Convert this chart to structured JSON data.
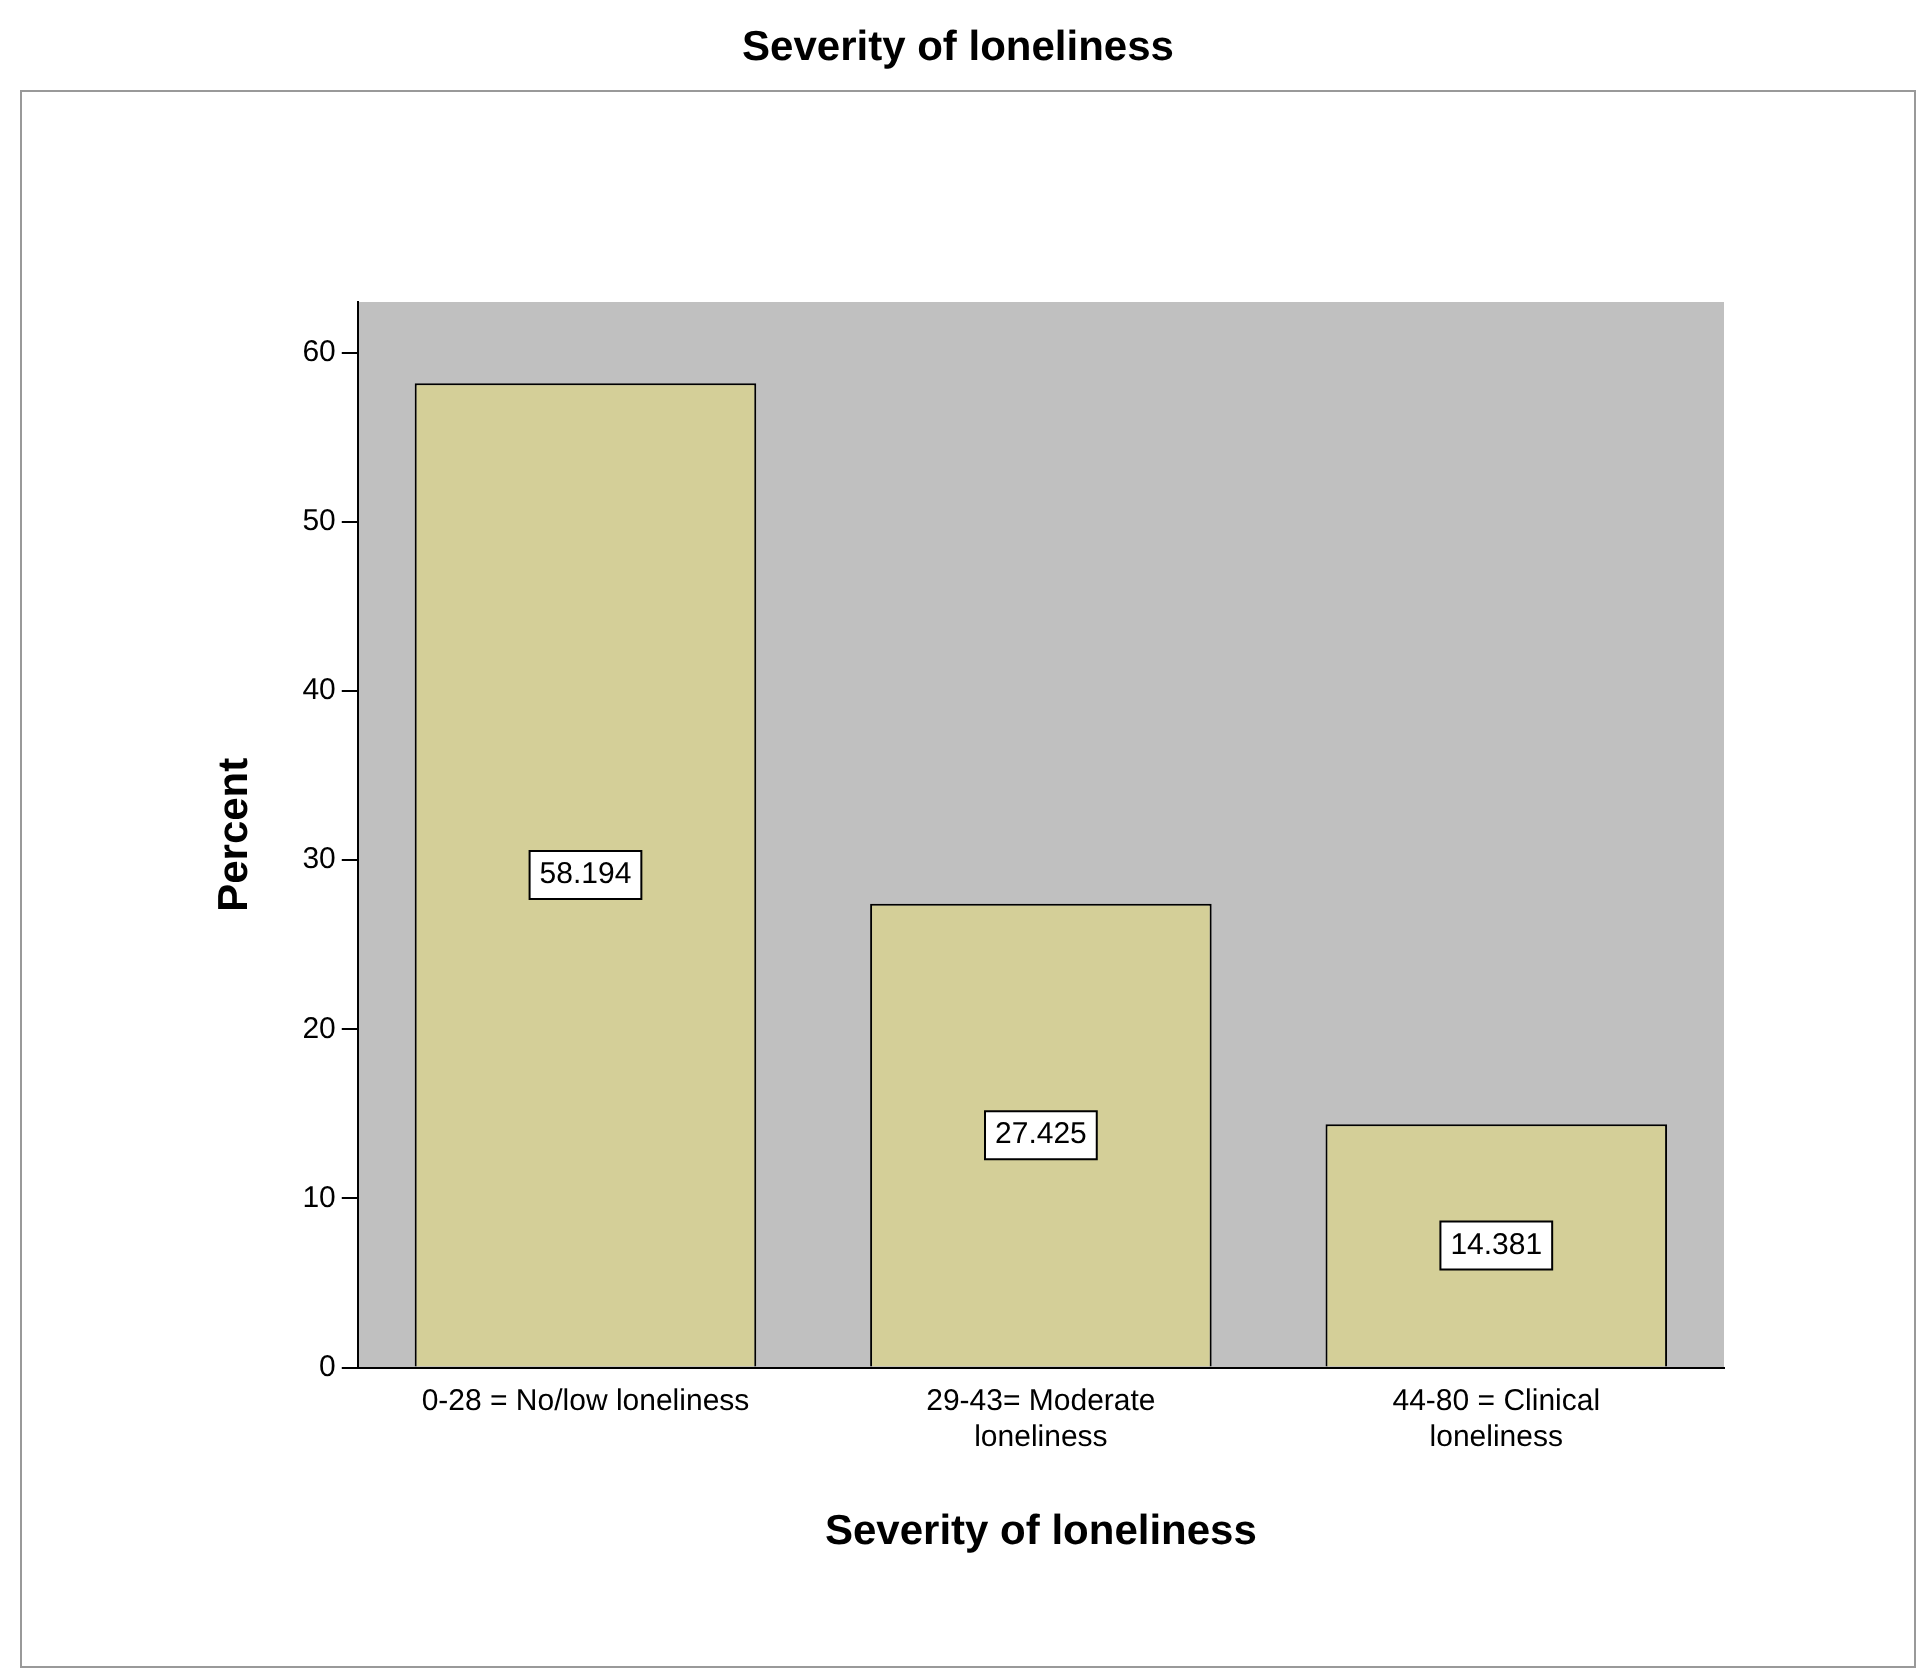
{
  "chart_data": {
    "type": "bar",
    "title": "Severity of loneliness",
    "xlabel": "Severity of loneliness",
    "ylabel": "Percent",
    "categories": [
      "0-28 = No/low loneliness",
      "29-43= Moderate loneliness",
      "44-80 = Clinical loneliness"
    ],
    "values": [
      58.194,
      27.425,
      14.381
    ],
    "color": "#d4cf98",
    "ylim": [
      0,
      63
    ],
    "yticks": [
      0,
      10,
      20,
      30,
      40,
      50,
      60
    ],
    "grid": false,
    "legend": false,
    "data_labels": true
  }
}
